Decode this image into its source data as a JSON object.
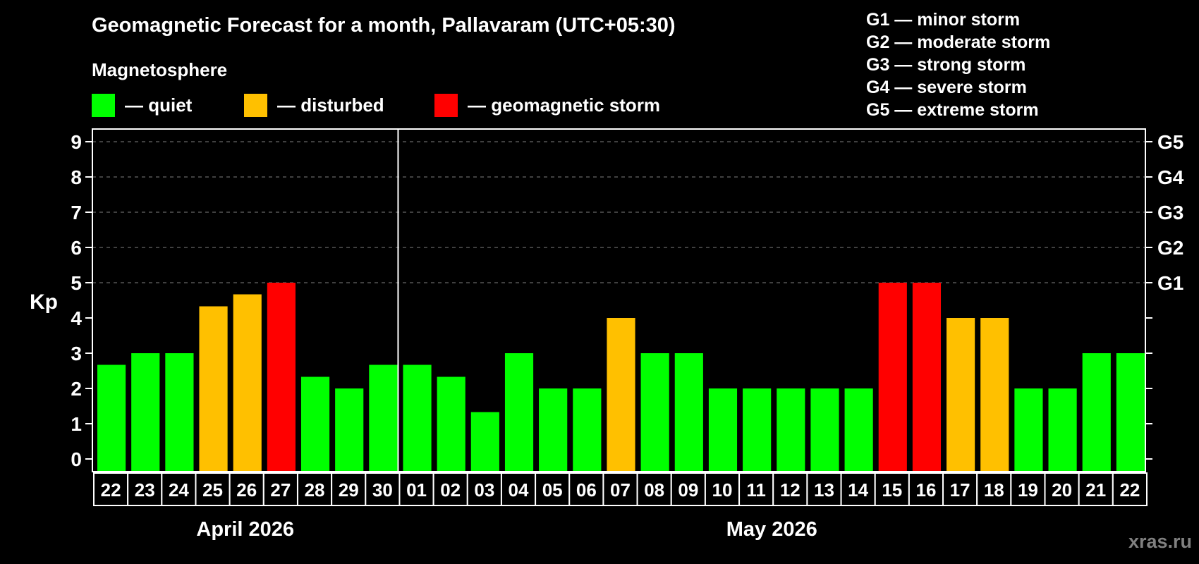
{
  "header": {
    "title": "Geomagnetic Forecast for a month, Pallavaram (UTC+05:30)",
    "subtitle": "Magnetosphere"
  },
  "legend": [
    {
      "label": "— quiet",
      "color": "#00ff00"
    },
    {
      "label": "— disturbed",
      "color": "#ffc000"
    },
    {
      "label": "— geomagnetic storm",
      "color": "#ff0000"
    }
  ],
  "g_legend": [
    "G1 — minor storm",
    "G2 — moderate storm",
    "G3 — strong storm",
    "G4 — severe storm",
    "G5 — extreme storm"
  ],
  "watermark": "xras.ru",
  "chart_data": {
    "type": "bar",
    "title": "Geomagnetic Forecast for a month, Pallavaram (UTC+05:30)",
    "xlabel": "",
    "ylabel": "Kp",
    "ylim": [
      0,
      9
    ],
    "yticks": [
      0,
      1,
      2,
      3,
      4,
      5,
      6,
      7,
      8,
      9
    ],
    "right_axis_labels": {
      "5": "G1",
      "6": "G2",
      "7": "G3",
      "8": "G4",
      "9": "G5"
    },
    "grid": "dashed horizontal at Kp 5-9",
    "months": [
      {
        "label": "April 2026",
        "start": 0,
        "count": 9
      },
      {
        "label": "May 2026",
        "start": 9,
        "count": 22
      }
    ],
    "categories": [
      "22",
      "23",
      "24",
      "25",
      "26",
      "27",
      "28",
      "29",
      "30",
      "01",
      "02",
      "03",
      "04",
      "05",
      "06",
      "07",
      "08",
      "09",
      "10",
      "11",
      "12",
      "13",
      "14",
      "15",
      "16",
      "17",
      "18",
      "19",
      "20",
      "21",
      "22"
    ],
    "values": [
      2.67,
      3,
      3,
      4.33,
      4.67,
      5,
      2.33,
      2,
      2.67,
      2.67,
      2.33,
      1.33,
      3,
      2,
      2,
      4,
      3,
      3,
      2,
      2,
      2,
      2,
      2,
      5,
      5,
      4,
      4,
      2,
      2,
      3,
      3
    ],
    "status": [
      "quiet",
      "quiet",
      "quiet",
      "disturbed",
      "disturbed",
      "storm",
      "quiet",
      "quiet",
      "quiet",
      "quiet",
      "quiet",
      "quiet",
      "quiet",
      "quiet",
      "quiet",
      "disturbed",
      "quiet",
      "quiet",
      "quiet",
      "quiet",
      "quiet",
      "quiet",
      "quiet",
      "storm",
      "storm",
      "disturbed",
      "disturbed",
      "quiet",
      "quiet",
      "quiet",
      "quiet"
    ],
    "colors": {
      "quiet": "#00ff00",
      "disturbed": "#ffc000",
      "storm": "#ff0000"
    }
  }
}
